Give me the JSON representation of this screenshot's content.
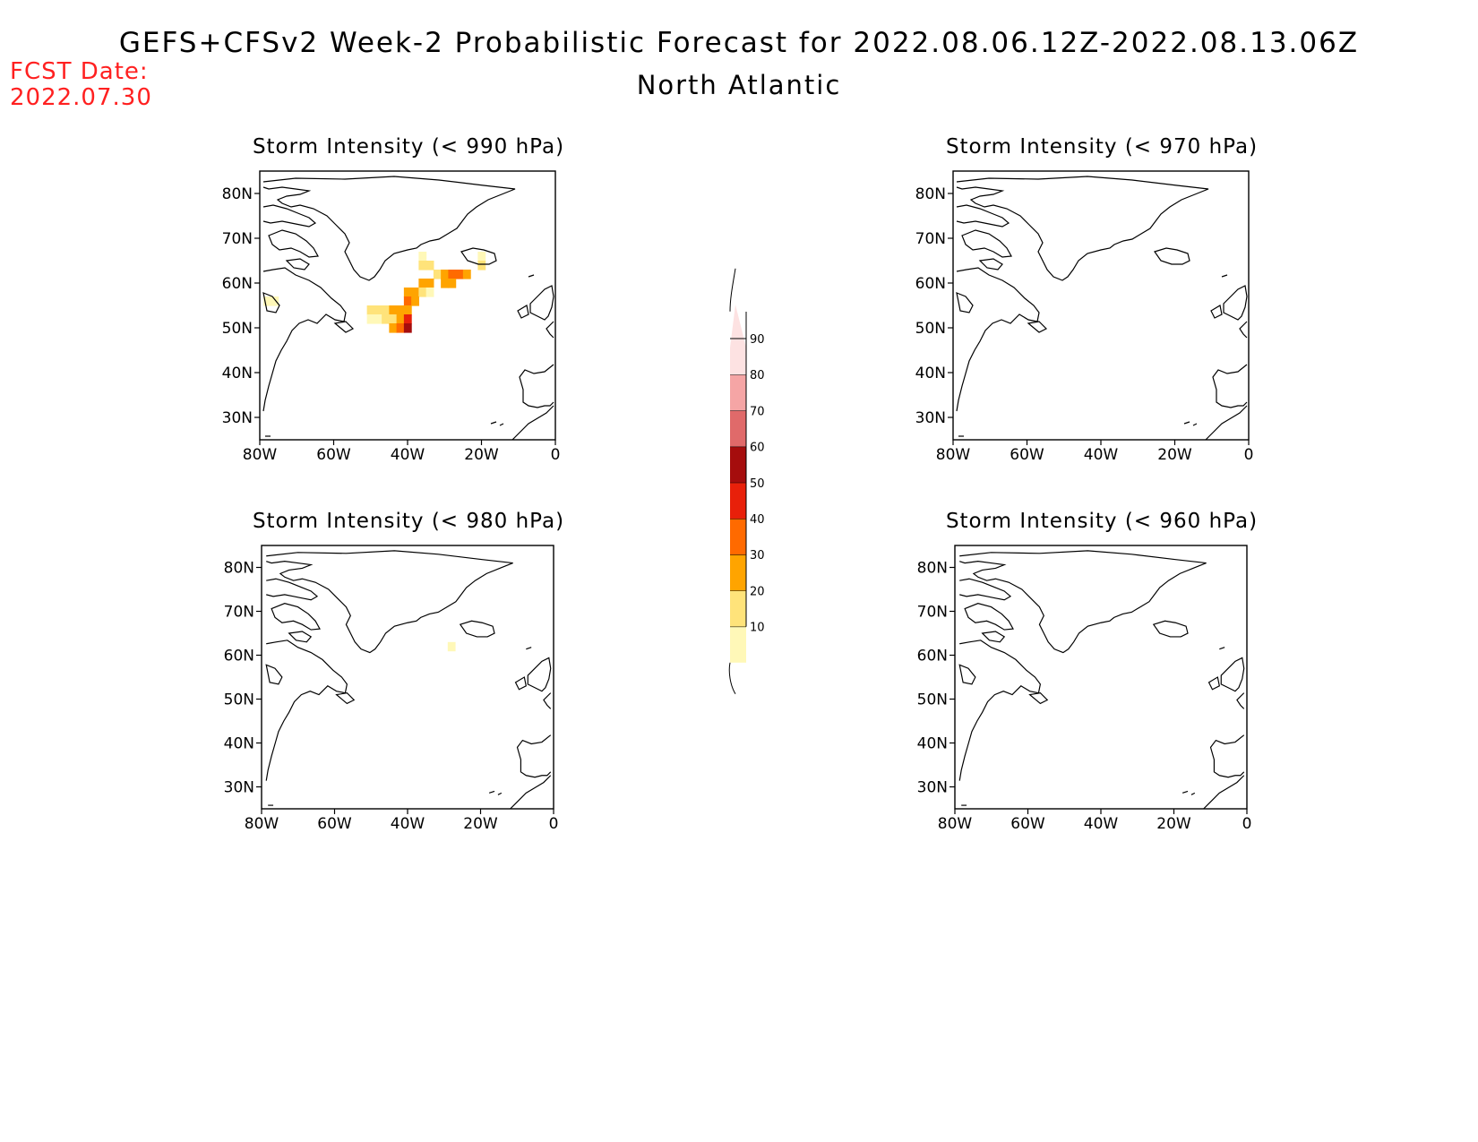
{
  "header": {
    "title": "GEFS+CFSv2 Week-2 Probabilistic Forecast for 2022.08.06.12Z-2022.08.13.06Z",
    "subtitle": "North Atlantic",
    "fcst_label": "FCST Date:",
    "fcst_date": "2022.07.30"
  },
  "panels": [
    {
      "title": "Storm Intensity (< 990 hPa)"
    },
    {
      "title": "Storm Intensity (< 970 hPa)"
    },
    {
      "title": "Storm Intensity (< 980 hPa)"
    },
    {
      "title": "Storm Intensity (< 960 hPa)"
    }
  ],
  "axes": {
    "lat_labels": [
      "80N",
      "70N",
      "60N",
      "50N",
      "40N",
      "30N"
    ],
    "lat_values": [
      80,
      70,
      60,
      50,
      40,
      30
    ],
    "lon_labels": [
      "80W",
      "60W",
      "40W",
      "20W",
      "0"
    ],
    "lon_values": [
      -80,
      -60,
      -40,
      -20,
      0
    ],
    "lon_range": [
      -80,
      0
    ],
    "lat_range": [
      25,
      85
    ]
  },
  "colorbar": {
    "levels": [
      "10",
      "20",
      "30",
      "40",
      "50",
      "60",
      "70",
      "80",
      "90"
    ],
    "colors": [
      "#fff8b8",
      "#ffe37a",
      "#ffa400",
      "#ff6a00",
      "#e8200a",
      "#a50d0d",
      "#e06a6a",
      "#f5a5a5",
      "#fde2e2"
    ]
  },
  "map_data": {
    "below_990": [
      {
        "lon": -36,
        "lat": 66,
        "prob": 15
      },
      {
        "lon": -36,
        "lat": 64,
        "prob": 25
      },
      {
        "lon": -34,
        "lat": 64,
        "prob": 25
      },
      {
        "lon": -20,
        "lat": 66,
        "prob": 15
      },
      {
        "lon": -20,
        "lat": 64,
        "prob": 25
      },
      {
        "lon": -32,
        "lat": 62,
        "prob": 25
      },
      {
        "lon": -30,
        "lat": 62,
        "prob": 35
      },
      {
        "lon": -28,
        "lat": 62,
        "prob": 45
      },
      {
        "lon": -26,
        "lat": 62,
        "prob": 40
      },
      {
        "lon": -24,
        "lat": 62,
        "prob": 35
      },
      {
        "lon": -36,
        "lat": 60,
        "prob": 35
      },
      {
        "lon": -34,
        "lat": 60,
        "prob": 30
      },
      {
        "lon": -30,
        "lat": 60,
        "prob": 30
      },
      {
        "lon": -28,
        "lat": 60,
        "prob": 30
      },
      {
        "lon": -40,
        "lat": 58,
        "prob": 35
      },
      {
        "lon": -38,
        "lat": 58,
        "prob": 35
      },
      {
        "lon": -36,
        "lat": 58,
        "prob": 25
      },
      {
        "lon": -34,
        "lat": 58,
        "prob": 15
      },
      {
        "lon": -40,
        "lat": 56,
        "prob": 40
      },
      {
        "lon": -38,
        "lat": 56,
        "prob": 30
      },
      {
        "lon": -50,
        "lat": 54,
        "prob": 25
      },
      {
        "lon": -48,
        "lat": 54,
        "prob": 20
      },
      {
        "lon": -46,
        "lat": 54,
        "prob": 25
      },
      {
        "lon": -44,
        "lat": 54,
        "prob": 30
      },
      {
        "lon": -42,
        "lat": 54,
        "prob": 35
      },
      {
        "lon": -40,
        "lat": 54,
        "prob": 30
      },
      {
        "lon": -50,
        "lat": 52,
        "prob": 15
      },
      {
        "lon": -48,
        "lat": 52,
        "prob": 15
      },
      {
        "lon": -46,
        "lat": 52,
        "prob": 20
      },
      {
        "lon": -44,
        "lat": 52,
        "prob": 25
      },
      {
        "lon": -42,
        "lat": 52,
        "prob": 35
      },
      {
        "lon": -40,
        "lat": 52,
        "prob": 55
      },
      {
        "lon": -44,
        "lat": 50,
        "prob": 35
      },
      {
        "lon": -42,
        "lat": 50,
        "prob": 45
      },
      {
        "lon": -40,
        "lat": 50,
        "prob": 65
      },
      {
        "lon": -78,
        "lat": 56,
        "prob": 15
      },
      {
        "lon": -76,
        "lat": 56,
        "prob": 15
      }
    ],
    "below_980": [
      {
        "lon": -28,
        "lat": 62,
        "prob": 15
      }
    ]
  }
}
